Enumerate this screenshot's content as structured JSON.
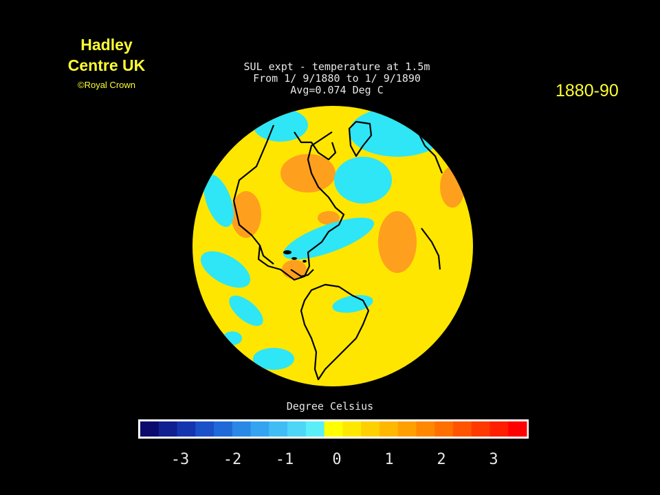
{
  "credit": {
    "line1": "Hadley",
    "line2": "Centre UK",
    "copyright": "©Royal Crown"
  },
  "period_label": "1880-90",
  "plot_title": {
    "line1": "SUL expt - temperature at 1.5m",
    "line2": "From 1/ 9/1880 to 1/ 9/1890",
    "line3": "Avg=0.074 Deg C"
  },
  "colorbar": {
    "unit_label": "Degree Celsius",
    "tick_labels": [
      "-3",
      "-2",
      "-1",
      "0",
      "1",
      "2",
      "3"
    ],
    "range": [
      -3,
      3
    ],
    "colors": [
      "#0b0b6e",
      "#102090",
      "#1535b0",
      "#1a50c8",
      "#1f6ad8",
      "#2a88e6",
      "#35a4f0",
      "#41bdf5",
      "#4dd6f7",
      "#59eef8",
      "#ffff00",
      "#ffe800",
      "#ffd000",
      "#ffb800",
      "#ffa000",
      "#ff8800",
      "#ff7000",
      "#ff5500",
      "#ff3a00",
      "#ff1e00",
      "#ff0000"
    ]
  },
  "map": {
    "projection": "orthographic",
    "dominant_colors": {
      "warm": "#ffe600",
      "warmer": "#ff9f1e",
      "cool": "#2ee6f5",
      "coast": "#000000",
      "background": "#000000"
    }
  }
}
